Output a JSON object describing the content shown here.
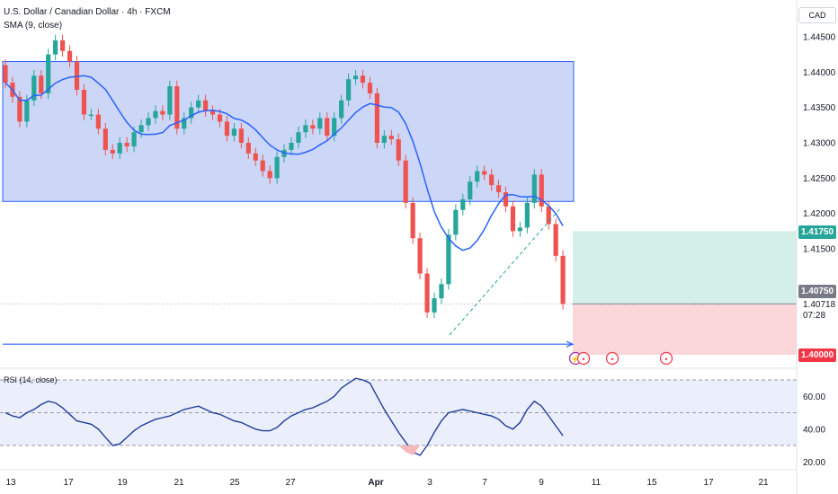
{
  "header": {
    "title": "U.S. Dollar / Canadian Dollar · 4h · FXCM",
    "indicator": "SMA (9, close)"
  },
  "currency": "CAD",
  "rsi_label": "RSI (14, close)",
  "price_tags": {
    "target": "1.41750",
    "current": "1.40750",
    "last": "1.40718",
    "countdown": "07:28",
    "stop": "1.40000"
  },
  "colors": {
    "up": "#26a69a",
    "down": "#ef5350",
    "sma": "#2962ff",
    "range_fill": "#ccd6f6",
    "range_border": "#2962ff",
    "profit_zone": "#d4efe7",
    "loss_zone": "#fbd7da",
    "rsi_line": "#1f3b9a",
    "rsi_band": "#ebeffc"
  },
  "event_icons": [
    "lightning-icon",
    "us-flag-icon",
    "us-flag-icon",
    "ca-flag-icon"
  ],
  "chart_data": [
    {
      "type": "candlestick",
      "title": "U.S. Dollar / Canadian Dollar · 4h · FXCM",
      "ylim": [
        1.3925,
        1.4525
      ],
      "y_ticks": [
        "1.44500",
        "1.44000",
        "1.43500",
        "1.43000",
        "1.42500",
        "1.42000",
        "1.41500",
        "1.40000"
      ],
      "x_ticks": [
        "13",
        "17",
        "19",
        "21",
        "25",
        "27",
        "Apr",
        "3",
        "7",
        "9",
        "11",
        "15",
        "17",
        "21"
      ],
      "close_series": [
        1.4385,
        1.4365,
        1.433,
        1.436,
        1.4395,
        1.437,
        1.4425,
        1.4445,
        1.443,
        1.4415,
        1.4375,
        1.434,
        1.434,
        1.432,
        1.429,
        1.4285,
        1.43,
        1.4295,
        1.4315,
        1.4325,
        1.4335,
        1.4345,
        1.434,
        1.438,
        1.432,
        1.4335,
        1.435,
        1.436,
        1.4345,
        1.434,
        1.433,
        1.431,
        1.432,
        1.43,
        1.4285,
        1.4275,
        1.426,
        1.425,
        1.428,
        1.429,
        1.43,
        1.4315,
        1.4325,
        1.432,
        1.4335,
        1.431,
        1.4335,
        1.436,
        1.439,
        1.4395,
        1.4385,
        1.437,
        1.43,
        1.431,
        1.4305,
        1.4275,
        1.4215,
        1.4165,
        1.4115,
        1.406,
        1.408,
        1.41,
        1.417,
        1.4205,
        1.422,
        1.4245,
        1.426,
        1.4255,
        1.424,
        1.423,
        1.421,
        1.4175,
        1.418,
        1.4215,
        1.4255,
        1.421,
        1.4185,
        1.414,
        1.4072
      ],
      "sma_label": "SMA (9, close)",
      "ranges": [
        {
          "name": "range-box",
          "top": 1.4415,
          "bottom": 1.4217
        }
      ],
      "support_line": 1.4015,
      "position": {
        "entry": 1.4072,
        "target": 1.4175,
        "stop": 1.4
      }
    },
    {
      "type": "line",
      "title": "RSI (14, close)",
      "ylim": [
        15,
        75
      ],
      "y_ticks": [
        "60.00",
        "40.00",
        "20.00"
      ],
      "bands": [
        30,
        50,
        70
      ],
      "values": [
        50,
        48,
        47,
        50,
        52,
        55,
        57,
        56,
        53,
        49,
        45,
        44,
        43,
        40,
        35,
        30,
        31,
        35,
        39,
        42,
        44,
        46,
        47,
        48,
        50,
        52,
        53,
        54,
        52,
        50,
        49,
        47,
        45,
        44,
        42,
        40,
        39,
        39,
        41,
        45,
        48,
        50,
        52,
        53,
        55,
        57,
        60,
        65,
        68,
        71,
        70,
        68,
        60,
        52,
        45,
        38,
        32,
        26,
        24,
        30,
        38,
        45,
        50,
        51,
        52,
        51,
        50,
        49,
        48,
        46,
        42,
        40,
        44,
        52,
        57,
        54,
        48,
        42,
        36
      ]
    }
  ]
}
